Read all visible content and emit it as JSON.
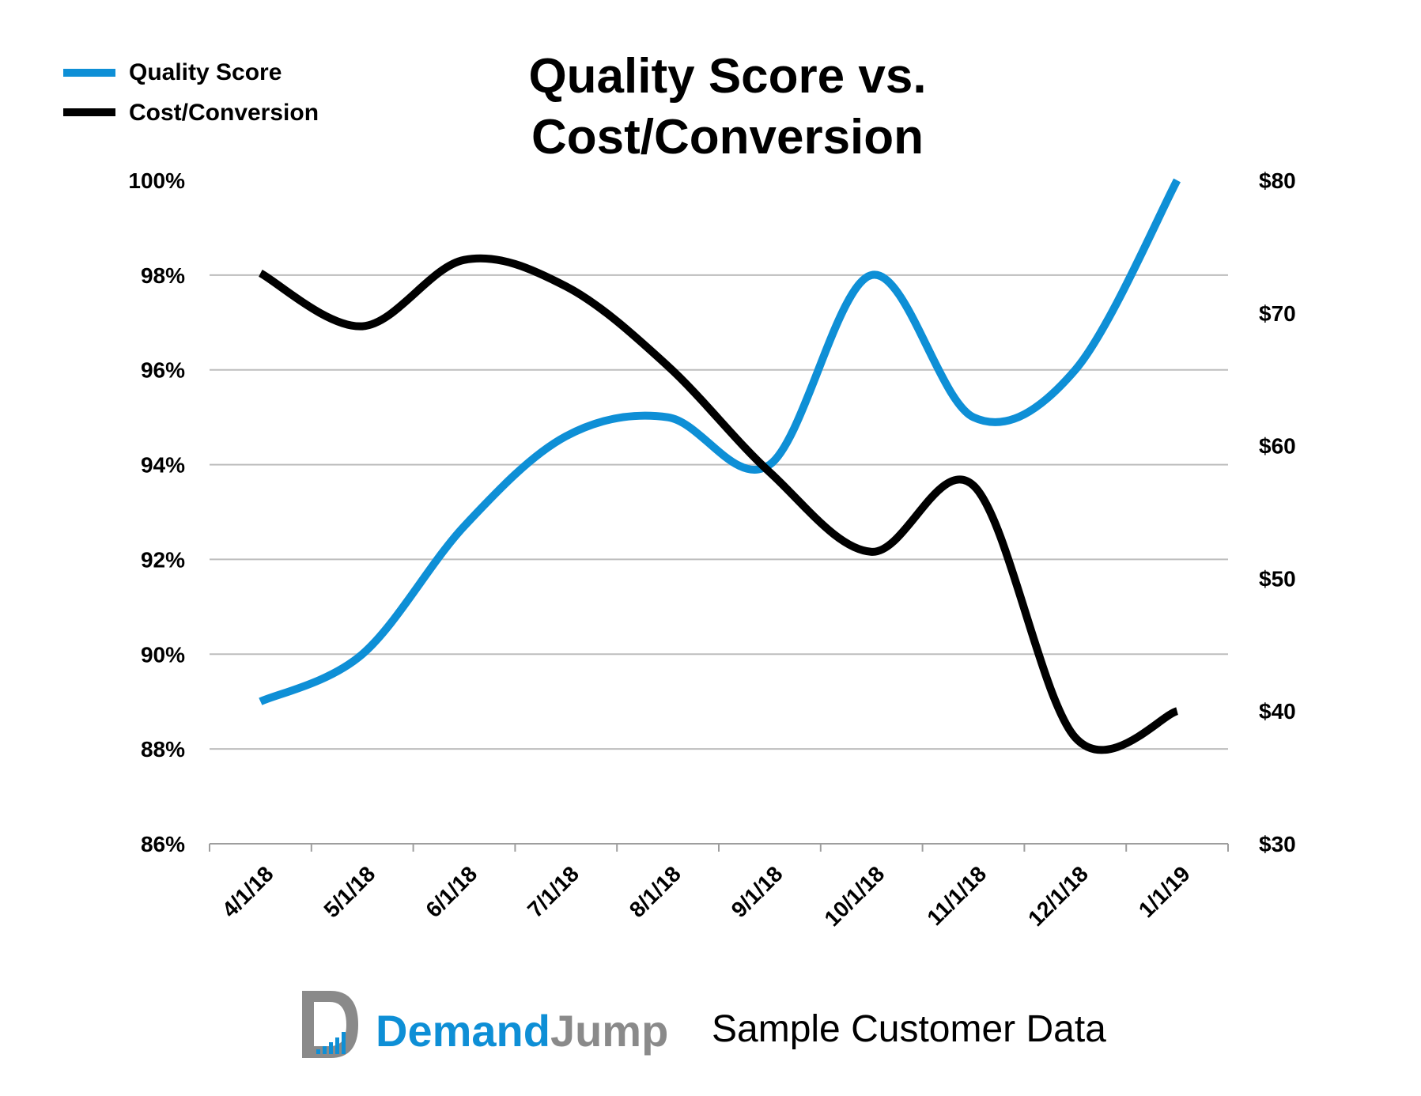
{
  "chart_data": {
    "type": "line",
    "title_lines": [
      "Quality Score vs.",
      "Cost/Conversion"
    ],
    "categories": [
      "4/1/18",
      "5/1/18",
      "6/1/18",
      "7/1/18",
      "8/1/18",
      "9/1/18",
      "10/1/18",
      "11/1/18",
      "12/1/18",
      "1/1/19"
    ],
    "y_left": {
      "min": 86,
      "max": 100,
      "ticks": [
        86,
        88,
        90,
        92,
        94,
        96,
        98,
        100
      ],
      "tick_labels": [
        "86%",
        "88%",
        "90%",
        "92%",
        "94%",
        "96%",
        "98%",
        "100%"
      ]
    },
    "y_right": {
      "min": 30,
      "max": 80,
      "ticks": [
        30,
        40,
        50,
        60,
        70,
        80
      ],
      "tick_labels": [
        "$30",
        "$40",
        "$50",
        "$60",
        "$70",
        "$80"
      ]
    },
    "grid": true,
    "legend_position": "top-left",
    "series": [
      {
        "name": "Quality Score",
        "axis": "left",
        "color": "#0E8FD6",
        "values": [
          89.0,
          90.0,
          92.7,
          94.6,
          95.0,
          94.0,
          98.0,
          95.0,
          96.0,
          100.0
        ]
      },
      {
        "name": "Cost/Conversion",
        "axis": "right",
        "color": "#000000",
        "values": [
          73,
          69,
          74,
          72,
          66,
          58,
          52,
          57,
          38,
          40
        ]
      }
    ]
  },
  "branding": {
    "logo_word_1": "Demand",
    "logo_word_2": "Jump",
    "tagline": "Sample Customer Data",
    "color_primary": "#0E8FD6",
    "color_secondary": "#8A8A8A"
  }
}
